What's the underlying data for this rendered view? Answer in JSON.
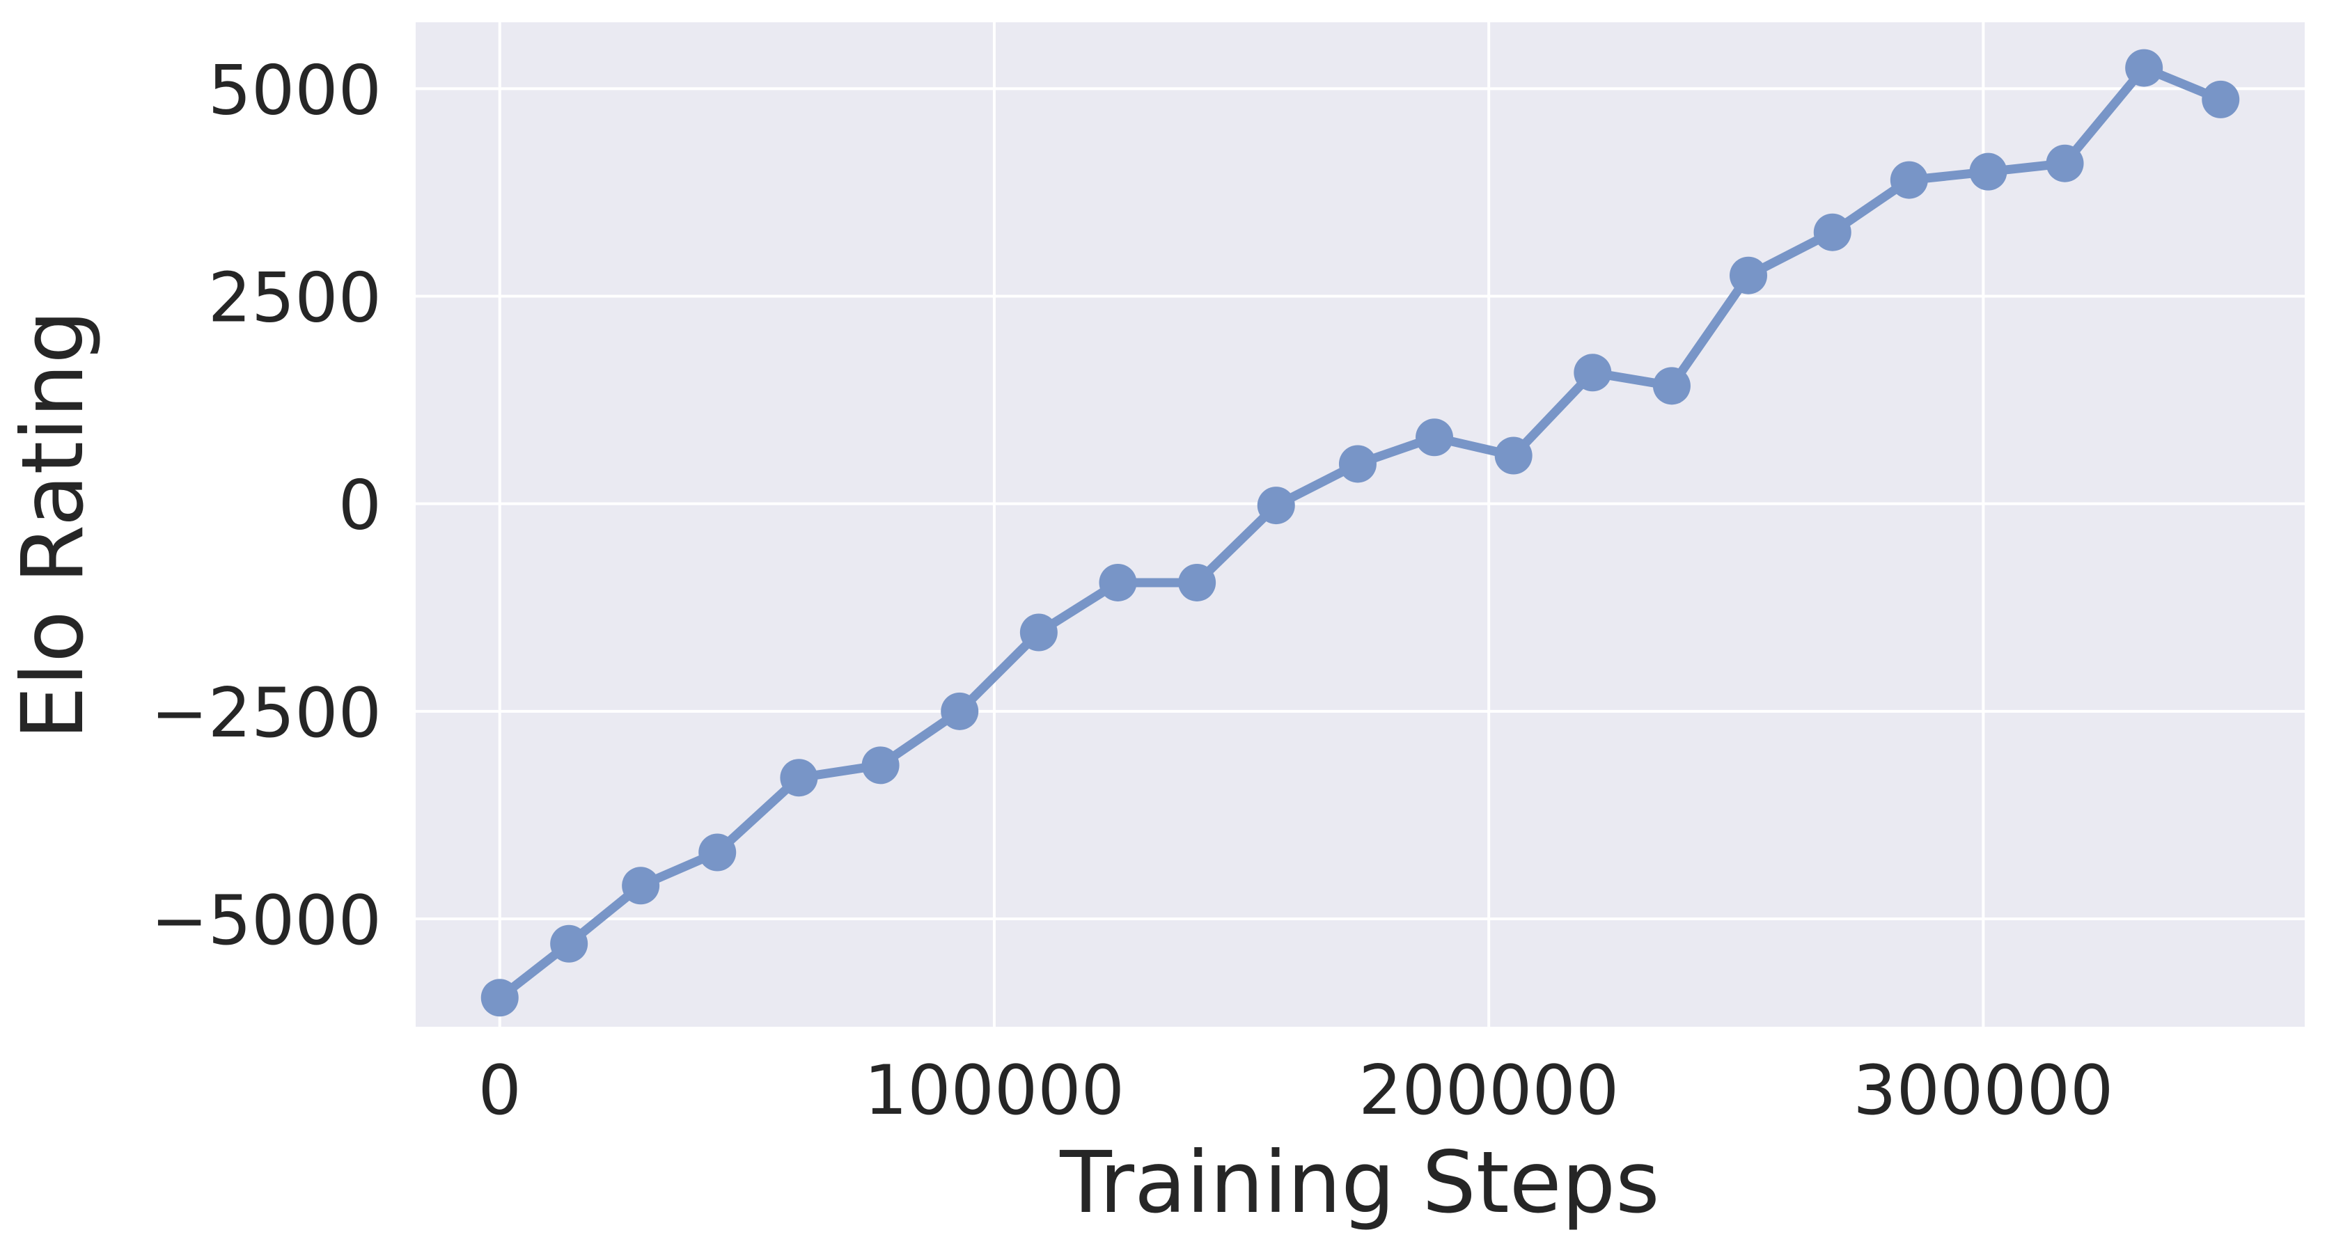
{
  "chart_data": {
    "type": "line",
    "title": "",
    "xlabel": "Training Steps",
    "ylabel": "Elo Rating",
    "xlim": [
      -17000,
      365000
    ],
    "ylim": [
      -6300,
      5800
    ],
    "xticks": [
      0,
      100000,
      200000,
      300000
    ],
    "xtick_labels": [
      "0",
      "100000",
      "200000",
      "300000"
    ],
    "yticks": [
      -5000,
      -2500,
      0,
      2500,
      5000
    ],
    "ytick_labels": [
      "−5000",
      "−2500",
      "0",
      "2500",
      "5000"
    ],
    "grid": true,
    "legend": "none",
    "series": [
      {
        "color": "#7895c7",
        "x": [
          0,
          14000,
          28500,
          44000,
          60500,
          77000,
          93000,
          109000,
          125000,
          141000,
          157000,
          173500,
          189000,
          205000,
          221000,
          237000,
          252500,
          269500,
          285000,
          301000,
          316500,
          332500,
          348000
        ],
        "y": [
          -5950,
          -5300,
          -4600,
          -4200,
          -3300,
          -3150,
          -2500,
          -1550,
          -950,
          -950,
          -20,
          480,
          800,
          580,
          1580,
          1420,
          2750,
          3270,
          3900,
          4000,
          4100,
          5250,
          4870
        ]
      }
    ]
  }
}
